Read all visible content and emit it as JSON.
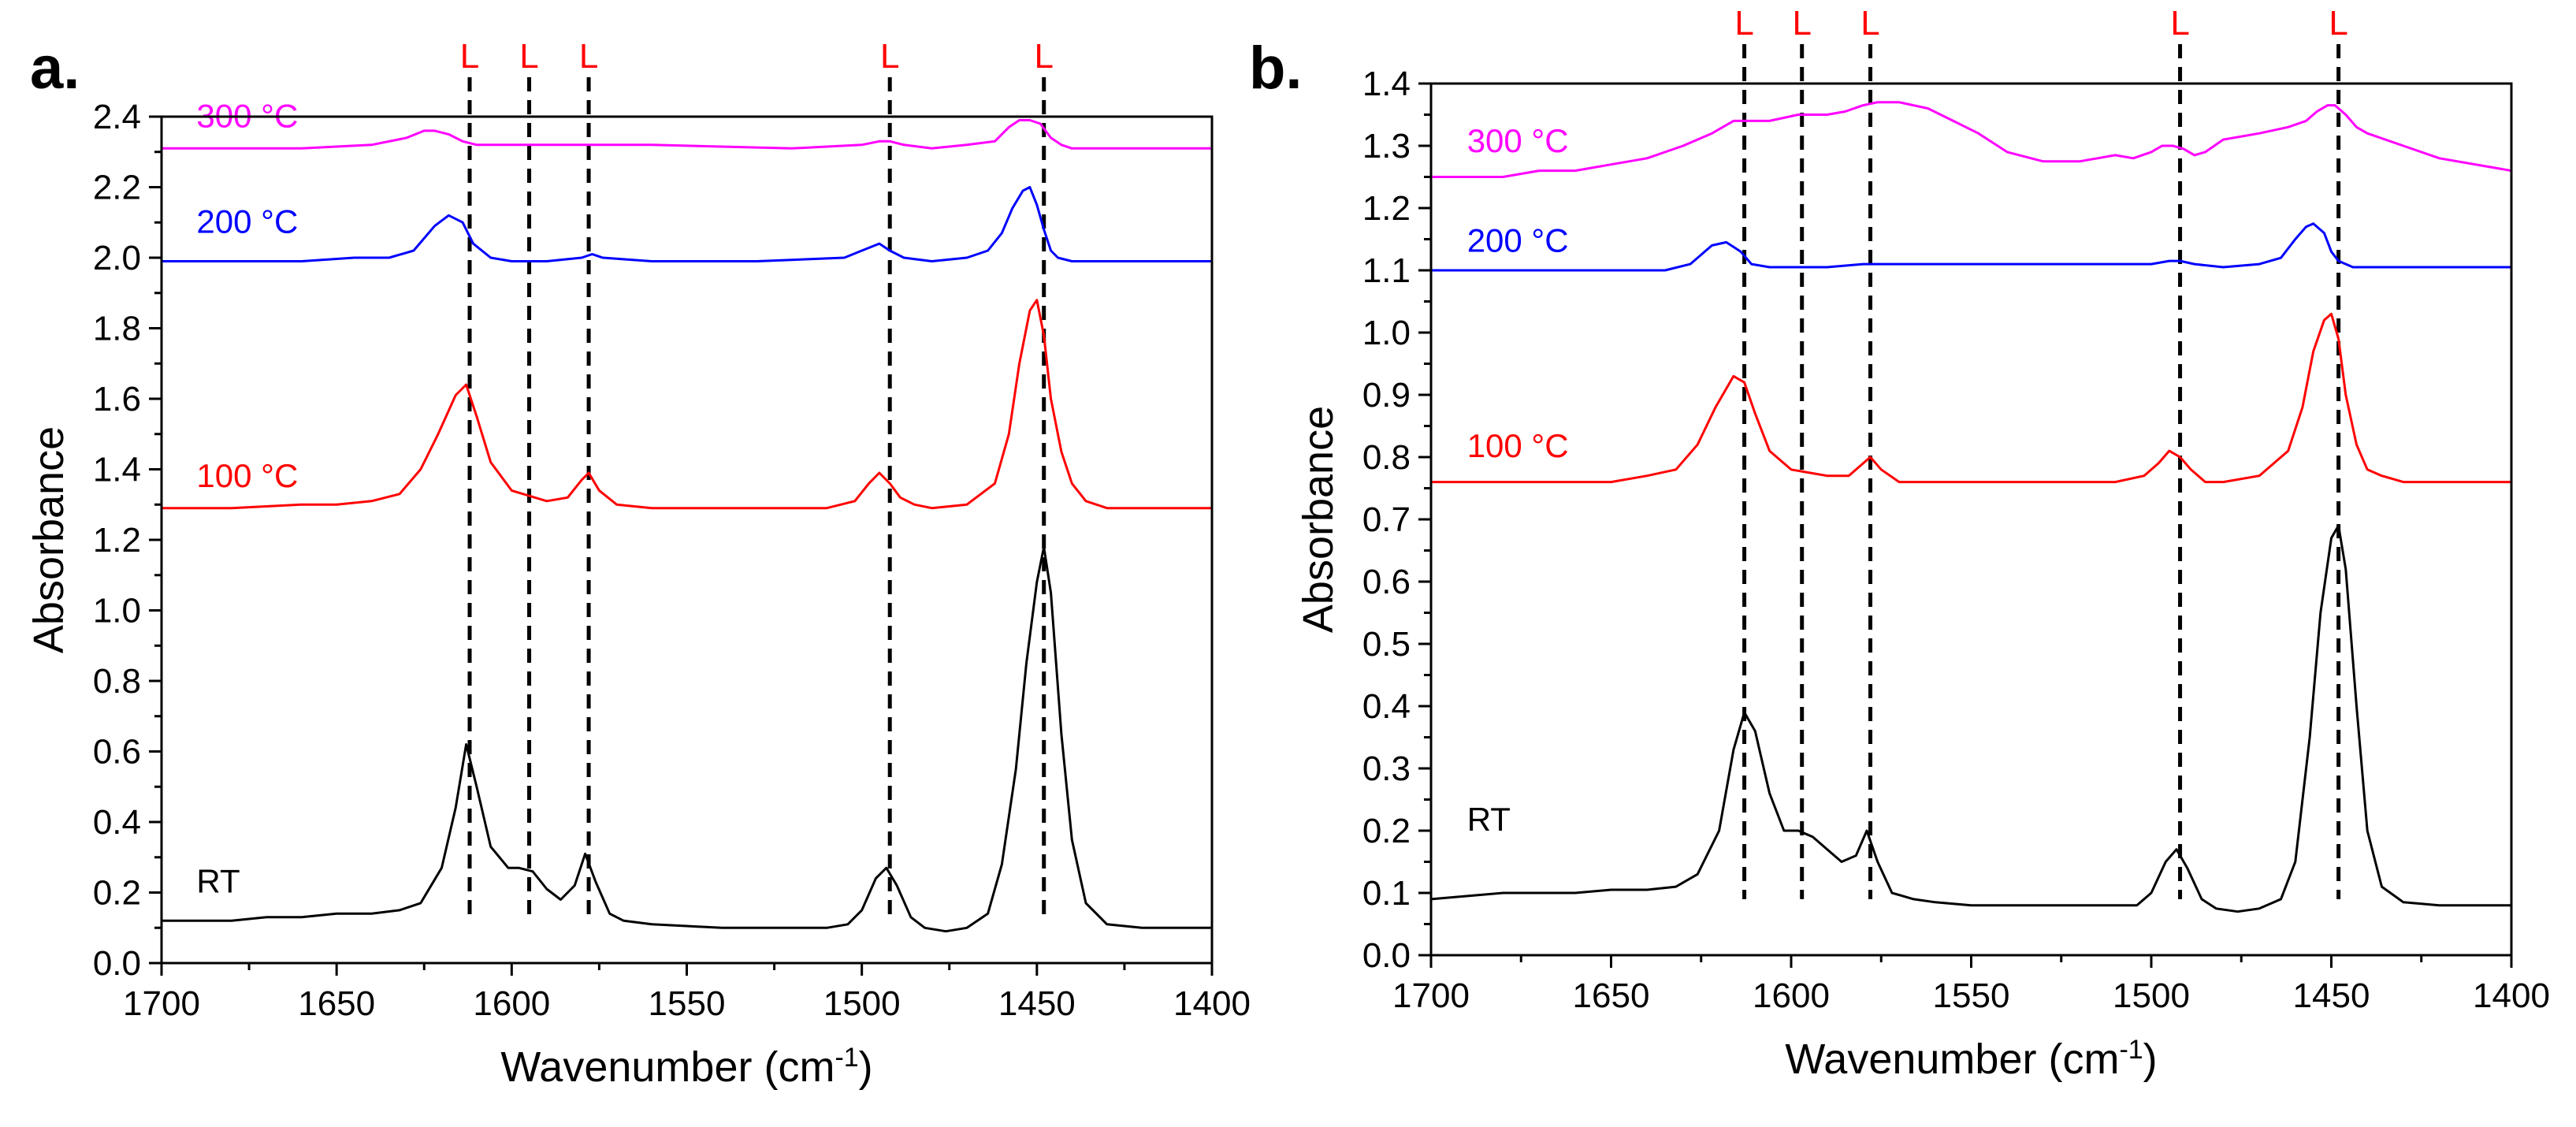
{
  "chart_data": [
    {
      "panel": "a.",
      "type": "line",
      "xlabel": "Wavenumber (cm",
      "xlabel_sup": "-1",
      "xlabel_close": ")",
      "ylabel": "Absorbance",
      "xlim": [
        1700,
        1400
      ],
      "ylim": [
        0.0,
        2.4
      ],
      "x_ticks": [
        "1700",
        "1650",
        "1600",
        "1550",
        "1500",
        "1450",
        "1400"
      ],
      "y_ticks": [
        "0.0",
        "0.2",
        "0.4",
        "0.6",
        "0.8",
        "1.0",
        "1.2",
        "1.4",
        "1.6",
        "1.8",
        "2.0",
        "2.2",
        "2.4"
      ],
      "marker_label": "L",
      "marker_positions": [
        1612,
        1595,
        1578,
        1492,
        1448
      ],
      "series": [
        {
          "name": "RT",
          "color": "#000000",
          "label_at": [
            1690,
            0.2
          ],
          "x": [
            1700,
            1690,
            1680,
            1670,
            1660,
            1650,
            1640,
            1632,
            1626,
            1620,
            1616,
            1613,
            1610,
            1606,
            1601,
            1598,
            1594,
            1590,
            1586,
            1582,
            1579,
            1576,
            1572,
            1568,
            1560,
            1550,
            1540,
            1530,
            1520,
            1510,
            1504,
            1500,
            1496,
            1493,
            1490,
            1486,
            1482,
            1476,
            1470,
            1464,
            1460,
            1456,
            1453,
            1450,
            1448,
            1446,
            1443,
            1440,
            1436,
            1430,
            1420,
            1410,
            1400
          ],
          "y": [
            0.12,
            0.12,
            0.12,
            0.13,
            0.13,
            0.14,
            0.14,
            0.15,
            0.17,
            0.27,
            0.44,
            0.62,
            0.5,
            0.33,
            0.27,
            0.27,
            0.26,
            0.21,
            0.18,
            0.22,
            0.31,
            0.23,
            0.14,
            0.12,
            0.11,
            0.105,
            0.1,
            0.1,
            0.1,
            0.1,
            0.11,
            0.15,
            0.24,
            0.27,
            0.22,
            0.13,
            0.1,
            0.09,
            0.1,
            0.14,
            0.28,
            0.55,
            0.85,
            1.08,
            1.18,
            1.05,
            0.65,
            0.35,
            0.17,
            0.11,
            0.1,
            0.1,
            0.1
          ]
        },
        {
          "name": "100 °C",
          "color": "#ff0000",
          "label_at": [
            1690,
            1.35
          ],
          "x": [
            1700,
            1680,
            1660,
            1650,
            1640,
            1632,
            1626,
            1621,
            1616,
            1613,
            1610,
            1606,
            1600,
            1590,
            1584,
            1580,
            1578,
            1575,
            1570,
            1560,
            1550,
            1530,
            1510,
            1502,
            1498,
            1495,
            1492,
            1489,
            1485,
            1480,
            1470,
            1462,
            1458,
            1455,
            1452,
            1450,
            1448,
            1446,
            1443,
            1440,
            1436,
            1430,
            1420,
            1400
          ],
          "y": [
            1.29,
            1.29,
            1.3,
            1.3,
            1.31,
            1.33,
            1.4,
            1.5,
            1.61,
            1.64,
            1.55,
            1.42,
            1.34,
            1.31,
            1.32,
            1.37,
            1.39,
            1.34,
            1.3,
            1.29,
            1.29,
            1.29,
            1.29,
            1.31,
            1.36,
            1.39,
            1.36,
            1.32,
            1.3,
            1.29,
            1.3,
            1.36,
            1.5,
            1.7,
            1.85,
            1.88,
            1.78,
            1.6,
            1.45,
            1.36,
            1.31,
            1.29,
            1.29,
            1.29
          ]
        },
        {
          "name": "200 °C",
          "color": "#0000ff",
          "label_at": [
            1690,
            2.07
          ],
          "x": [
            1700,
            1680,
            1660,
            1645,
            1635,
            1628,
            1622,
            1618,
            1614,
            1611,
            1606,
            1600,
            1590,
            1580,
            1577,
            1574,
            1560,
            1530,
            1505,
            1500,
            1495,
            1492,
            1488,
            1480,
            1470,
            1464,
            1460,
            1457,
            1454,
            1452,
            1450,
            1448,
            1446,
            1444,
            1440,
            1430,
            1420,
            1400
          ],
          "y": [
            1.99,
            1.99,
            1.99,
            2.0,
            2.0,
            2.02,
            2.09,
            2.12,
            2.1,
            2.04,
            2.0,
            1.99,
            1.99,
            2.0,
            2.01,
            2.0,
            1.99,
            1.99,
            2.0,
            2.02,
            2.04,
            2.02,
            2.0,
            1.99,
            2.0,
            2.02,
            2.07,
            2.14,
            2.19,
            2.2,
            2.15,
            2.08,
            2.02,
            2.0,
            1.99,
            1.99,
            1.99,
            1.99
          ]
        },
        {
          "name": "300 °C",
          "color": "#ff00ff",
          "label_at": [
            1690,
            2.37
          ],
          "x": [
            1700,
            1660,
            1640,
            1630,
            1625,
            1622,
            1618,
            1614,
            1610,
            1600,
            1580,
            1560,
            1520,
            1500,
            1495,
            1492,
            1488,
            1480,
            1470,
            1462,
            1458,
            1455,
            1452,
            1449,
            1446,
            1443,
            1440,
            1430,
            1400
          ],
          "y": [
            2.31,
            2.31,
            2.32,
            2.34,
            2.36,
            2.36,
            2.35,
            2.33,
            2.32,
            2.32,
            2.32,
            2.32,
            2.31,
            2.32,
            2.33,
            2.33,
            2.32,
            2.31,
            2.32,
            2.33,
            2.37,
            2.39,
            2.39,
            2.38,
            2.34,
            2.32,
            2.31,
            2.31,
            2.31
          ]
        }
      ]
    },
    {
      "panel": "b.",
      "type": "line",
      "xlabel": "Wavenumber (cm",
      "xlabel_sup": "-1",
      "xlabel_close": ")",
      "ylabel": "Absorbance",
      "xlim": [
        1700,
        1400
      ],
      "ylim": [
        0.0,
        1.4
      ],
      "x_ticks": [
        "1700",
        "1650",
        "1600",
        "1550",
        "1500",
        "1450",
        "1400"
      ],
      "y_ticks": [
        "0.0",
        "0.1",
        "0.2",
        "0.3",
        "0.4",
        "0.5",
        "0.6",
        "0.7",
        "0.8",
        "0.9",
        "1.0",
        "1.1",
        "1.2",
        "1.3",
        "1.4"
      ],
      "marker_label": "L",
      "marker_positions": [
        1613,
        1597,
        1578,
        1492,
        1448
      ],
      "series": [
        {
          "name": "RT",
          "color": "#000000",
          "label_at": [
            1690,
            0.2
          ],
          "x": [
            1700,
            1680,
            1660,
            1650,
            1640,
            1632,
            1626,
            1620,
            1616,
            1613,
            1610,
            1606,
            1602,
            1598,
            1594,
            1590,
            1586,
            1582,
            1579,
            1576,
            1572,
            1566,
            1560,
            1550,
            1530,
            1510,
            1504,
            1500,
            1496,
            1493,
            1490,
            1486,
            1482,
            1476,
            1470,
            1464,
            1460,
            1456,
            1453,
            1450,
            1448,
            1446,
            1443,
            1440,
            1436,
            1430,
            1420,
            1400
          ],
          "y": [
            0.09,
            0.1,
            0.1,
            0.105,
            0.105,
            0.11,
            0.13,
            0.2,
            0.33,
            0.39,
            0.36,
            0.26,
            0.2,
            0.2,
            0.19,
            0.17,
            0.15,
            0.16,
            0.2,
            0.15,
            0.1,
            0.09,
            0.085,
            0.08,
            0.08,
            0.08,
            0.08,
            0.1,
            0.15,
            0.17,
            0.14,
            0.09,
            0.075,
            0.07,
            0.075,
            0.09,
            0.15,
            0.35,
            0.55,
            0.67,
            0.69,
            0.62,
            0.4,
            0.2,
            0.11,
            0.085,
            0.08,
            0.08
          ]
        },
        {
          "name": "100 °C",
          "color": "#ff0000",
          "label_at": [
            1690,
            0.8
          ],
          "x": [
            1700,
            1680,
            1660,
            1650,
            1640,
            1632,
            1626,
            1621,
            1616,
            1613,
            1610,
            1606,
            1600,
            1590,
            1584,
            1580,
            1578,
            1575,
            1570,
            1560,
            1550,
            1530,
            1510,
            1502,
            1498,
            1495,
            1492,
            1489,
            1485,
            1480,
            1470,
            1462,
            1458,
            1455,
            1452,
            1450,
            1448,
            1446,
            1443,
            1440,
            1436,
            1430,
            1420,
            1400
          ],
          "y": [
            0.76,
            0.76,
            0.76,
            0.76,
            0.77,
            0.78,
            0.82,
            0.88,
            0.93,
            0.92,
            0.87,
            0.81,
            0.78,
            0.77,
            0.77,
            0.79,
            0.8,
            0.78,
            0.76,
            0.76,
            0.76,
            0.76,
            0.76,
            0.77,
            0.79,
            0.81,
            0.8,
            0.78,
            0.76,
            0.76,
            0.77,
            0.81,
            0.88,
            0.97,
            1.02,
            1.03,
            0.99,
            0.9,
            0.82,
            0.78,
            0.77,
            0.76,
            0.76,
            0.76
          ]
        },
        {
          "name": "200 °C",
          "color": "#0000ff",
          "label_at": [
            1690,
            1.13
          ],
          "x": [
            1700,
            1680,
            1660,
            1645,
            1635,
            1628,
            1622,
            1618,
            1614,
            1611,
            1606,
            1600,
            1590,
            1580,
            1560,
            1530,
            1505,
            1500,
            1495,
            1492,
            1488,
            1480,
            1470,
            1464,
            1460,
            1457,
            1455,
            1452,
            1450,
            1448,
            1444,
            1440,
            1430,
            1420,
            1400
          ],
          "y": [
            1.1,
            1.1,
            1.1,
            1.1,
            1.1,
            1.11,
            1.14,
            1.145,
            1.13,
            1.11,
            1.105,
            1.105,
            1.105,
            1.11,
            1.11,
            1.11,
            1.11,
            1.11,
            1.115,
            1.115,
            1.11,
            1.105,
            1.11,
            1.12,
            1.15,
            1.17,
            1.175,
            1.16,
            1.13,
            1.115,
            1.105,
            1.105,
            1.105,
            1.105,
            1.105
          ]
        },
        {
          "name": "300 °C",
          "color": "#ff00ff",
          "label_at": [
            1690,
            1.29
          ],
          "x": [
            1700,
            1690,
            1680,
            1670,
            1660,
            1650,
            1640,
            1630,
            1622,
            1616,
            1612,
            1606,
            1598,
            1590,
            1585,
            1580,
            1576,
            1570,
            1562,
            1555,
            1548,
            1540,
            1530,
            1520,
            1510,
            1505,
            1500,
            1497,
            1494,
            1491,
            1488,
            1485,
            1480,
            1470,
            1462,
            1457,
            1454,
            1451,
            1449,
            1446,
            1443,
            1440,
            1430,
            1420,
            1400
          ],
          "y": [
            1.25,
            1.25,
            1.25,
            1.26,
            1.26,
            1.27,
            1.28,
            1.3,
            1.32,
            1.34,
            1.34,
            1.34,
            1.35,
            1.35,
            1.355,
            1.365,
            1.37,
            1.37,
            1.36,
            1.34,
            1.32,
            1.29,
            1.275,
            1.275,
            1.285,
            1.28,
            1.29,
            1.3,
            1.3,
            1.295,
            1.285,
            1.29,
            1.31,
            1.32,
            1.33,
            1.34,
            1.355,
            1.365,
            1.365,
            1.35,
            1.33,
            1.32,
            1.3,
            1.28,
            1.26
          ]
        }
      ]
    }
  ]
}
